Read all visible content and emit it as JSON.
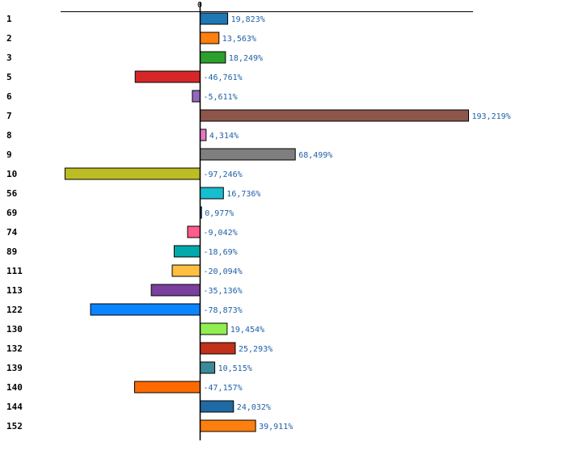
{
  "chart_data": {
    "type": "bar",
    "orientation": "horizontal",
    "grid": false,
    "legend": "none",
    "zero_tick": "0",
    "categories": [
      "1",
      "2",
      "3",
      "5",
      "6",
      "7",
      "8",
      "9",
      "10",
      "56",
      "69",
      "74",
      "89",
      "111",
      "113",
      "122",
      "130",
      "132",
      "139",
      "140",
      "144",
      "152"
    ],
    "values": [
      19.823,
      13.563,
      18.249,
      -46.761,
      -5.611,
      193.219,
      4.314,
      68.499,
      -97.246,
      16.736,
      0.977,
      -9.042,
      -18.69,
      -20.094,
      -35.136,
      -78.873,
      19.454,
      25.293,
      10.515,
      -47.157,
      24.032,
      39.911
    ],
    "value_labels": [
      "19,823%",
      "13,563%",
      "18,249%",
      "-46,761%",
      "-5,611%",
      "193,219%",
      "4,314%",
      "68,499%",
      "-97,246%",
      "16,736%",
      "0,977%",
      "-9,042%",
      "-18,69%",
      "-20,094%",
      "-35,136%",
      "-78,873%",
      "19,454%",
      "25,293%",
      "10,515%",
      "-47,157%",
      "24,032%",
      "39,911%"
    ],
    "colors": [
      "#1f77b4",
      "#ff7f0e",
      "#2ca02c",
      "#d62728",
      "#9467bd",
      "#8c564b",
      "#e377c2",
      "#7f7f7f",
      "#bcbd22",
      "#17becf",
      "#1f77b4",
      "#ff5c8d",
      "#00aaaa",
      "#ffbf40",
      "#7b3f9e",
      "#0a84ff",
      "#90ee50",
      "#c0301a",
      "#3a8a9a",
      "#ff6a00",
      "#1f6aa5",
      "#ff7f0e"
    ],
    "xlim": [
      -100,
      197
    ]
  }
}
